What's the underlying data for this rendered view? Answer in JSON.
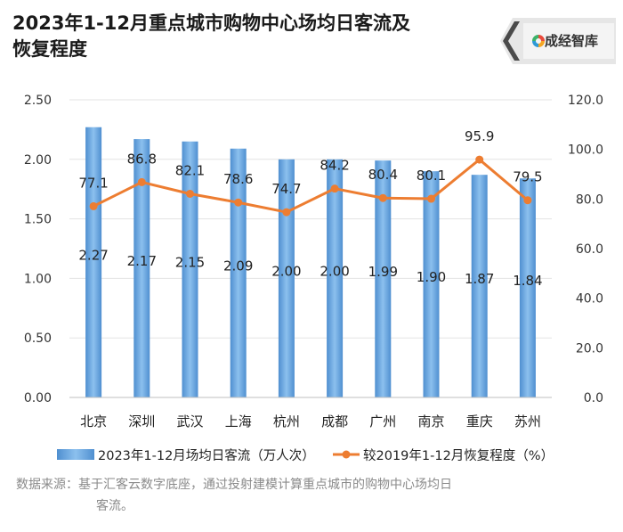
{
  "title_line1": "2023年1-12月重点城市购物中心场均日客流及",
  "title_line2": "恢复程度",
  "logo": {
    "text": "成经智库",
    "icon": "colorful-ring-logo-icon"
  },
  "source": {
    "line1": "数据来源：基于汇客云数字底座，通过投射建模计算重点城市的购物中心场均日",
    "line2": "客流。"
  },
  "colors": {
    "bar": "#5b9bd5",
    "line": "#ed7d31",
    "grid": "#e3e3e3"
  },
  "chart_data": {
    "type": "bar+line",
    "categories": [
      "北京",
      "深圳",
      "武汉",
      "上海",
      "杭州",
      "成都",
      "广州",
      "南京",
      "重庆",
      "苏州"
    ],
    "series": [
      {
        "name": "2023年1-12月场均日客流（万人次）",
        "type": "bar",
        "axis": "left",
        "values": [
          2.27,
          2.17,
          2.15,
          2.09,
          2.0,
          2.0,
          1.99,
          1.9,
          1.87,
          1.84
        ],
        "labels": [
          "2.27",
          "2.17",
          "2.15",
          "2.09",
          "2.00",
          "2.00",
          "1.99",
          "1.90",
          "1.87",
          "1.84"
        ]
      },
      {
        "name": "较2019年1-12月恢复程度（%）",
        "type": "line",
        "axis": "right",
        "values": [
          77.1,
          86.8,
          82.1,
          78.6,
          74.7,
          84.2,
          80.4,
          80.1,
          95.9,
          79.5
        ],
        "labels": [
          "77.1",
          "86.8",
          "82.1",
          "78.6",
          "74.7",
          "84.2",
          "80.4",
          "80.1",
          "95.9",
          "79.5"
        ]
      }
    ],
    "y_left": {
      "min": 0,
      "max": 2.5,
      "ticks": [
        "0.00",
        "0.50",
        "1.00",
        "1.50",
        "2.00",
        "2.50"
      ]
    },
    "y_right": {
      "min": 0,
      "max": 120,
      "ticks": [
        "0.0",
        "20.0",
        "40.0",
        "60.0",
        "80.0",
        "100.0",
        "120.0"
      ]
    },
    "grid": true,
    "legend": "bottom"
  }
}
